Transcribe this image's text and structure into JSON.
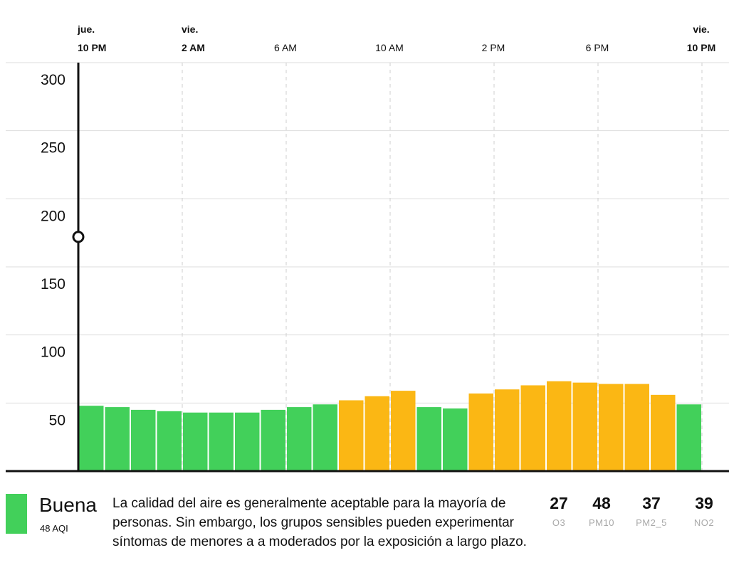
{
  "chart_data": {
    "type": "bar",
    "y_ticks": [
      50,
      100,
      150,
      200,
      250,
      300
    ],
    "ylim": [
      0,
      300
    ],
    "x_labels": [
      {
        "day": "jue.",
        "time": "10 PM"
      },
      {
        "day": "vie.",
        "time": "2 AM"
      },
      {
        "day": "",
        "time": "6 AM"
      },
      {
        "day": "",
        "time": "10 AM"
      },
      {
        "day": "",
        "time": "2 PM"
      },
      {
        "day": "",
        "time": "6 PM"
      },
      {
        "day": "vie.",
        "time": "10 PM"
      }
    ],
    "values": [
      48,
      47,
      45,
      44,
      43,
      43,
      43,
      45,
      47,
      49,
      52,
      55,
      59,
      47,
      46,
      57,
      60,
      63,
      66,
      65,
      64,
      64,
      56,
      49
    ],
    "categories": [
      "green",
      "green",
      "green",
      "green",
      "green",
      "green",
      "green",
      "green",
      "green",
      "green",
      "yellow",
      "yellow",
      "yellow",
      "green",
      "green",
      "yellow",
      "yellow",
      "yellow",
      "yellow",
      "yellow",
      "yellow",
      "yellow",
      "yellow",
      "green"
    ],
    "cursor_value": 172,
    "colors": {
      "green": "#42d05a",
      "yellow": "#fbb714",
      "grid": "#dddddd",
      "axis": "#111111"
    }
  },
  "summary": {
    "category": "Buena",
    "aqi_text": "48 AQI",
    "description": "La calidad del aire es generalmente aceptable para la mayoría de personas. Sin embargo, los grupos sensibles pueden experimentar síntomas de menores a a moderados por la exposición a largo plazo.",
    "pollutants": [
      {
        "value": "27",
        "name": "O3"
      },
      {
        "value": "48",
        "name": "PM10"
      },
      {
        "value": "37",
        "name": "PM2_5"
      },
      {
        "value": "39",
        "name": "NO2"
      }
    ]
  }
}
